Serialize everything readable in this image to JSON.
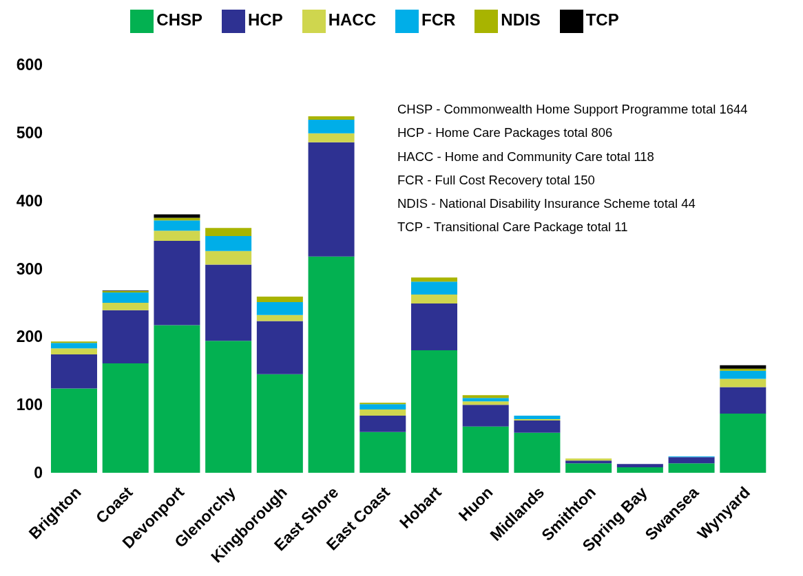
{
  "chart_data": {
    "type": "bar",
    "stacked": true,
    "categories": [
      "Brighton",
      "Coast",
      "Devonport",
      "Glenorchy",
      "Kingborough",
      "East Shore",
      "East Coast",
      "Hobart",
      "Huon",
      "Midlands",
      "Smithton",
      "Spring Bay",
      "Swansea",
      "Wynyard"
    ],
    "series": [
      {
        "name": "CHSP",
        "color": "#03b151",
        "values": [
          124,
          161,
          217,
          194,
          145,
          318,
          60,
          180,
          68,
          59,
          14,
          8,
          14,
          87
        ]
      },
      {
        "name": "HCP",
        "color": "#2e3192",
        "values": [
          50,
          78,
          124,
          112,
          78,
          168,
          24,
          69,
          32,
          18,
          4,
          5,
          9,
          39
        ]
      },
      {
        "name": "HACC",
        "color": "#cfd64e",
        "values": [
          9,
          11,
          15,
          20,
          9,
          13,
          9,
          13,
          5,
          2,
          3,
          0,
          0,
          12
        ]
      },
      {
        "name": "FCR",
        "color": "#00aee8",
        "values": [
          8,
          15,
          15,
          22,
          19,
          20,
          8,
          19,
          5,
          5,
          0,
          0,
          1,
          12
        ]
      },
      {
        "name": "NDIS",
        "color": "#a8b400",
        "values": [
          2,
          2,
          4,
          12,
          8,
          5,
          2,
          6,
          4,
          0,
          0,
          0,
          0,
          3
        ]
      },
      {
        "name": "TCP",
        "color": "#000000",
        "values": [
          0,
          1,
          5,
          0,
          0,
          0,
          0,
          0,
          0,
          0,
          0,
          0,
          0,
          5
        ]
      }
    ],
    "ylim": [
      0,
      600
    ],
    "yticks": [
      0,
      100,
      200,
      300,
      400,
      500,
      600
    ],
    "grid": false,
    "legend": "top",
    "annotations": [
      "CHSP - Commonwealth Home Support Programme total 1644",
      "HCP - Home Care Packages total 806",
      "HACC - Home and Community Care total 118",
      "FCR - Full Cost Recovery total 150",
      "NDIS - National Disability Insurance Scheme total 44",
      "TCP - Transitional Care Package total 11"
    ]
  }
}
